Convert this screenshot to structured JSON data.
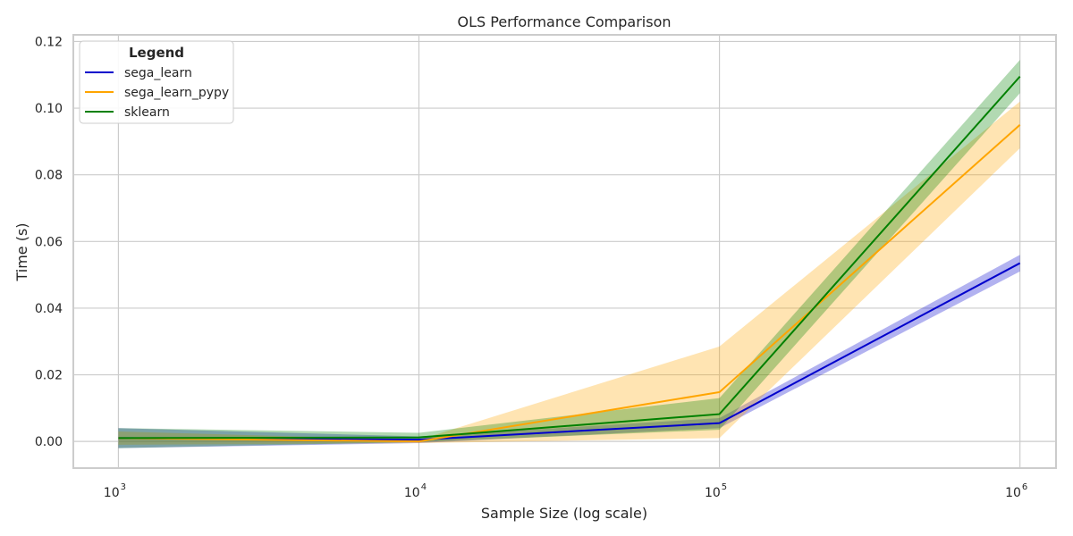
{
  "chart_data": {
    "type": "line",
    "title": "OLS Performance Comparison",
    "xlabel": "Sample Size (log scale)",
    "ylabel": "Time (s)",
    "x_scale": "log",
    "x": [
      1000,
      10000,
      100000,
      1000000
    ],
    "x_tick_labels": [
      {
        "base": "10",
        "exp": "3"
      },
      {
        "base": "10",
        "exp": "4"
      },
      {
        "base": "10",
        "exp": "5"
      },
      {
        "base": "10",
        "exp": "6"
      }
    ],
    "y_ticks": [
      0.0,
      0.02,
      0.04,
      0.06,
      0.08,
      0.1,
      0.12
    ],
    "y_tick_labels": [
      "0.00",
      "0.02",
      "0.04",
      "0.06",
      "0.08",
      "0.10",
      "0.12"
    ],
    "ylim": [
      -0.008,
      0.122
    ],
    "grid": true,
    "legend": {
      "title": "Legend",
      "placement": "top-left"
    },
    "series": [
      {
        "name": "sega_learn",
        "color": "#0000cc",
        "values": [
          0.001,
          0.0005,
          0.0055,
          0.0535
        ],
        "lower": [
          -0.002,
          -0.0005,
          0.004,
          0.051
        ],
        "upper": [
          0.004,
          0.0015,
          0.007,
          0.056
        ]
      },
      {
        "name": "sega_learn_pypy",
        "color": "#ffa500",
        "values": [
          0.001,
          0.0,
          0.0148,
          0.095
        ],
        "lower": [
          -0.001,
          -0.0005,
          0.001,
          0.088
        ],
        "upper": [
          0.003,
          0.0005,
          0.0285,
          0.102
        ]
      },
      {
        "name": "sklearn",
        "color": "#008000",
        "values": [
          0.001,
          0.0012,
          0.0082,
          0.1095
        ],
        "lower": [
          -0.002,
          -0.0002,
          0.0035,
          0.1045
        ],
        "upper": [
          0.004,
          0.0026,
          0.013,
          0.1145
        ]
      }
    ]
  }
}
